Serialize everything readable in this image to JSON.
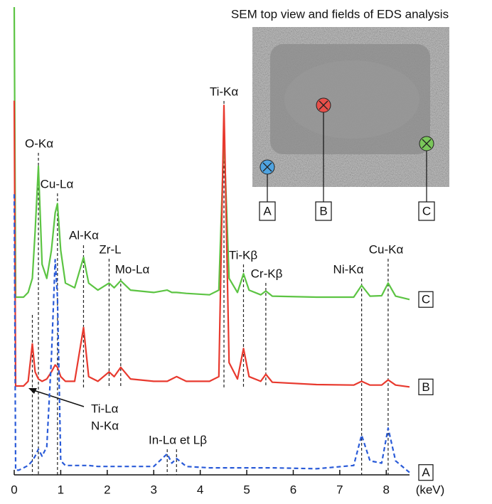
{
  "chart_data": {
    "type": "line",
    "x_label": "(keV)",
    "x": [
      0,
      0.03,
      0.1,
      0.2,
      0.3,
      0.39,
      0.45,
      0.52,
      0.6,
      0.7,
      0.8,
      0.88,
      0.93,
      1.0,
      1.1,
      1.3,
      1.49,
      1.6,
      1.8,
      2.04,
      2.15,
      2.29,
      2.5,
      3.0,
      3.29,
      3.39,
      3.49,
      3.7,
      4.2,
      4.4,
      4.51,
      4.62,
      4.8,
      4.93,
      5.05,
      5.3,
      5.41,
      5.55,
      6.5,
      7.3,
      7.47,
      7.65,
      7.9,
      8.04,
      8.2,
      8.5
    ],
    "series": [
      {
        "name": "C",
        "color": "#5cc443",
        "dashed": false,
        "values": [
          100,
          38,
          38,
          38,
          39,
          42,
          52,
          66,
          45,
          42,
          48,
          56,
          58,
          48,
          41,
          40,
          46.5,
          41,
          39.5,
          41,
          40,
          41.5,
          39.5,
          39,
          39.5,
          39,
          39,
          38.8,
          38.5,
          39.5,
          72.6,
          42,
          39,
          43,
          39.5,
          38.5,
          39.3,
          38.2,
          38,
          38,
          40.5,
          38.2,
          38.3,
          41,
          38.2,
          37.5
        ]
      },
      {
        "name": "B",
        "color": "#e8392e",
        "dashed": false,
        "values": [
          80,
          19,
          19,
          19,
          20,
          28,
          22,
          20.5,
          20,
          20.5,
          22,
          23.5,
          23,
          21,
          20,
          20,
          31.5,
          21,
          20,
          22,
          21,
          23,
          20.5,
          20,
          20,
          20.5,
          21,
          20,
          20,
          21,
          79,
          24,
          20.5,
          27,
          21,
          20,
          21.5,
          19.8,
          19.3,
          19.2,
          20,
          19.2,
          19.2,
          20.3,
          19.2,
          18.8
        ]
      },
      {
        "name": "A",
        "color": "#2a5bd8",
        "dashed": true,
        "values": [
          60,
          1,
          1,
          1.5,
          2,
          3,
          4,
          5.5,
          4,
          6,
          25,
          46,
          38,
          3,
          2,
          2,
          2,
          2,
          1.8,
          1.8,
          1.8,
          1.8,
          1.8,
          1.8,
          4.5,
          2.5,
          3.5,
          1.8,
          1.5,
          1.5,
          1.5,
          1.5,
          1.5,
          1.5,
          1.5,
          1.5,
          1.5,
          1.5,
          1.3,
          2,
          8.5,
          3,
          2.5,
          10,
          3,
          0.5
        ]
      }
    ],
    "xlim": [
      0,
      8.5
    ],
    "xticks": [
      0,
      1,
      2,
      3,
      4,
      5,
      6,
      7,
      8
    ],
    "ylim": [
      0,
      100
    ],
    "annotations": [
      {
        "text": "O-Kα",
        "x": 0.52
      },
      {
        "text": "Cu-Lα",
        "x": 0.93
      },
      {
        "text": "Al-Kα",
        "x": 1.49
      },
      {
        "text": "Zr-L",
        "x": 2.04
      },
      {
        "text": "Mo-Lα",
        "x": 2.29
      },
      {
        "text": "Ti-Kα",
        "x": 4.51
      },
      {
        "text": "Ti-Kβ",
        "x": 4.93
      },
      {
        "text": "Cr-Kβ",
        "x": 5.41
      },
      {
        "text": "Ni-Kα",
        "x": 7.47
      },
      {
        "text": "Cu-Kα",
        "x": 8.04
      },
      {
        "text": "In-Lα et Lβ",
        "x": 3.29
      },
      {
        "text": "Ti-Lα",
        "x": 0.39
      },
      {
        "text": "N-Kα",
        "x": 0.39
      }
    ]
  },
  "inset": {
    "title": "SEM top view and fields of EDS analysis",
    "markers": [
      "A",
      "B",
      "C"
    ]
  }
}
